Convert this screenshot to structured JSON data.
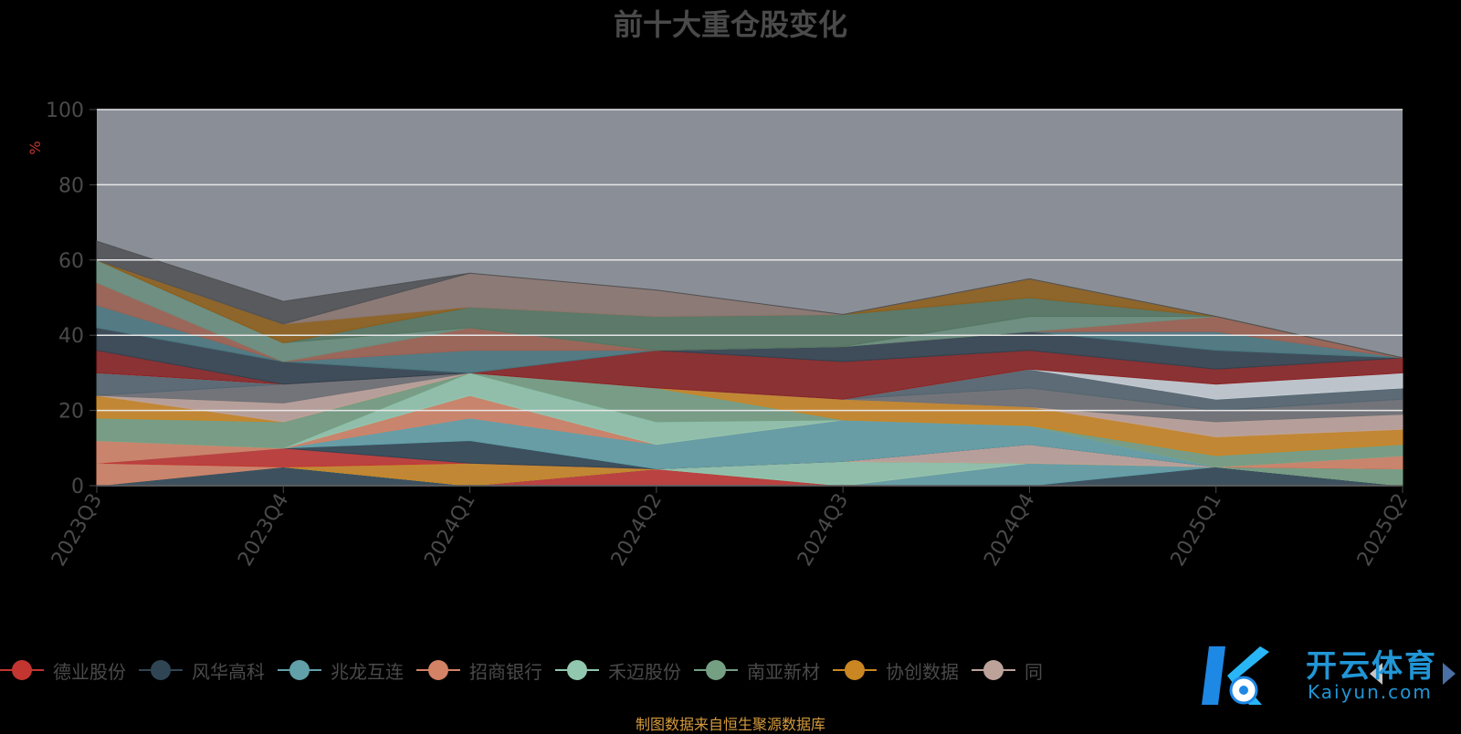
{
  "chart_data": {
    "type": "area",
    "title": "前十大重仓股变化",
    "ylabel": "%",
    "ylim": [
      0,
      100
    ],
    "yticks": [
      0,
      20,
      40,
      60,
      80,
      100
    ],
    "grid": true,
    "legend_position": "bottom",
    "categories": [
      "2023Q3",
      "2023Q4",
      "2024Q1",
      "2024Q2",
      "2024Q3",
      "2024Q4",
      "2025Q1",
      "2025Q2"
    ],
    "series": [
      {
        "name": "德业股份",
        "color": "#c23531",
        "values": [
          0,
          0,
          0,
          4.5,
          0,
          0,
          0,
          0
        ]
      },
      {
        "name": "风华高科",
        "color": "#2f4554",
        "values": [
          0,
          5,
          0,
          0,
          0,
          0,
          5,
          0
        ]
      },
      {
        "name": "兆龙互连",
        "color": "#61a0a8",
        "values": [
          0,
          0,
          0,
          0,
          0,
          6,
          0,
          0
        ]
      },
      {
        "name": "招商银行",
        "color": "#d48265",
        "values": [
          6,
          0,
          0,
          0,
          0,
          0,
          0,
          0
        ]
      },
      {
        "name": "禾迈股份",
        "color": "#91c7ae",
        "values": [
          0,
          0,
          0,
          0,
          6.5,
          0,
          0,
          0
        ]
      },
      {
        "name": "南亚新材",
        "color": "#749f83",
        "values": [
          0,
          0,
          0,
          0,
          0,
          0,
          0,
          4.5
        ]
      },
      {
        "name": "协创数据",
        "color": "#ca8622",
        "values": [
          0,
          0,
          6,
          0,
          0,
          0,
          0,
          0
        ]
      },
      {
        "name": "同",
        "color": "#bda29a",
        "values": [
          0,
          0,
          0,
          0,
          0,
          5,
          0,
          0
        ]
      }
    ]
  },
  "legend": {
    "items": [
      {
        "label": "德业股份",
        "color": "#c23531"
      },
      {
        "label": "风华高科",
        "color": "#2f4554"
      },
      {
        "label": "兆龙互连",
        "color": "#61a0a8"
      },
      {
        "label": "招商银行",
        "color": "#d48265"
      },
      {
        "label": "禾迈股份",
        "color": "#91c7ae"
      },
      {
        "label": "南亚新材",
        "color": "#749f83"
      },
      {
        "label": "协创数据",
        "color": "#ca8622"
      },
      {
        "label": "同",
        "color": "#bda29a"
      }
    ]
  },
  "source_text": "制图数据来自恒生聚源数据库",
  "watermark": {
    "title": "开云体育",
    "subtitle": "Kaiyun.com"
  },
  "colors": {
    "plot_bg": "#8a8f97",
    "grid": "#e6e6e6",
    "title": "#4a4a4a",
    "axis_label": "#4a4a4a",
    "ylabel": "#c23531",
    "source": "#d59a3c",
    "stack_palette": [
      "#c23531",
      "#2f4554",
      "#61a0a8",
      "#d48265",
      "#91c7ae",
      "#749f83",
      "#ca8622",
      "#bda29a",
      "#6e7074",
      "#546570",
      "#c4ccd3",
      "#8b2222",
      "#31424f",
      "#4a7880",
      "#9e6050",
      "#6a8f7e",
      "#547661",
      "#8e5e18",
      "#8c7770",
      "#4f5154"
    ]
  },
  "background_stack": [
    [
      0,
      5,
      0,
      0,
      0,
      0,
      0,
      0
    ],
    [
      0,
      0,
      6,
      0,
      0,
      0,
      0,
      0
    ],
    [
      0,
      0,
      6,
      6.5,
      11,
      5,
      0,
      0
    ],
    [
      6,
      0,
      6,
      0,
      0,
      0,
      0,
      3.5
    ],
    [
      0,
      0,
      6,
      6,
      0,
      0,
      0,
      0
    ],
    [
      6,
      7,
      0,
      9,
      0,
      0,
      3,
      3
    ],
    [
      6,
      0,
      0,
      0,
      5.5,
      5,
      5,
      4
    ],
    [
      0,
      5,
      0,
      0,
      0,
      0,
      4,
      4
    ],
    [
      0,
      5,
      0,
      0,
      0,
      5,
      3,
      4
    ],
    [
      6,
      0,
      0,
      0,
      0,
      5,
      3,
      3
    ],
    [
      0,
      0,
      0,
      0,
      0,
      0,
      4,
      4
    ],
    [
      6,
      0,
      0,
      10,
      10,
      5,
      4,
      4
    ],
    [
      6,
      6,
      0,
      0,
      4,
      5,
      5,
      0
    ],
    [
      6,
      0,
      6,
      0,
      0,
      0,
      5,
      0
    ],
    [
      6,
      0,
      6,
      0,
      0,
      0,
      4,
      0
    ],
    [
      6,
      5,
      0,
      0,
      0,
      4,
      0,
      0
    ],
    [
      0,
      0,
      5.5,
      9,
      8.5,
      5,
      0,
      0
    ],
    [
      0,
      5,
      0,
      0,
      0,
      5,
      0,
      0
    ],
    [
      0,
      0,
      9,
      7,
      0,
      0,
      0,
      0
    ],
    [
      5,
      6,
      0,
      0,
      0,
      0,
      0,
      0
    ]
  ]
}
